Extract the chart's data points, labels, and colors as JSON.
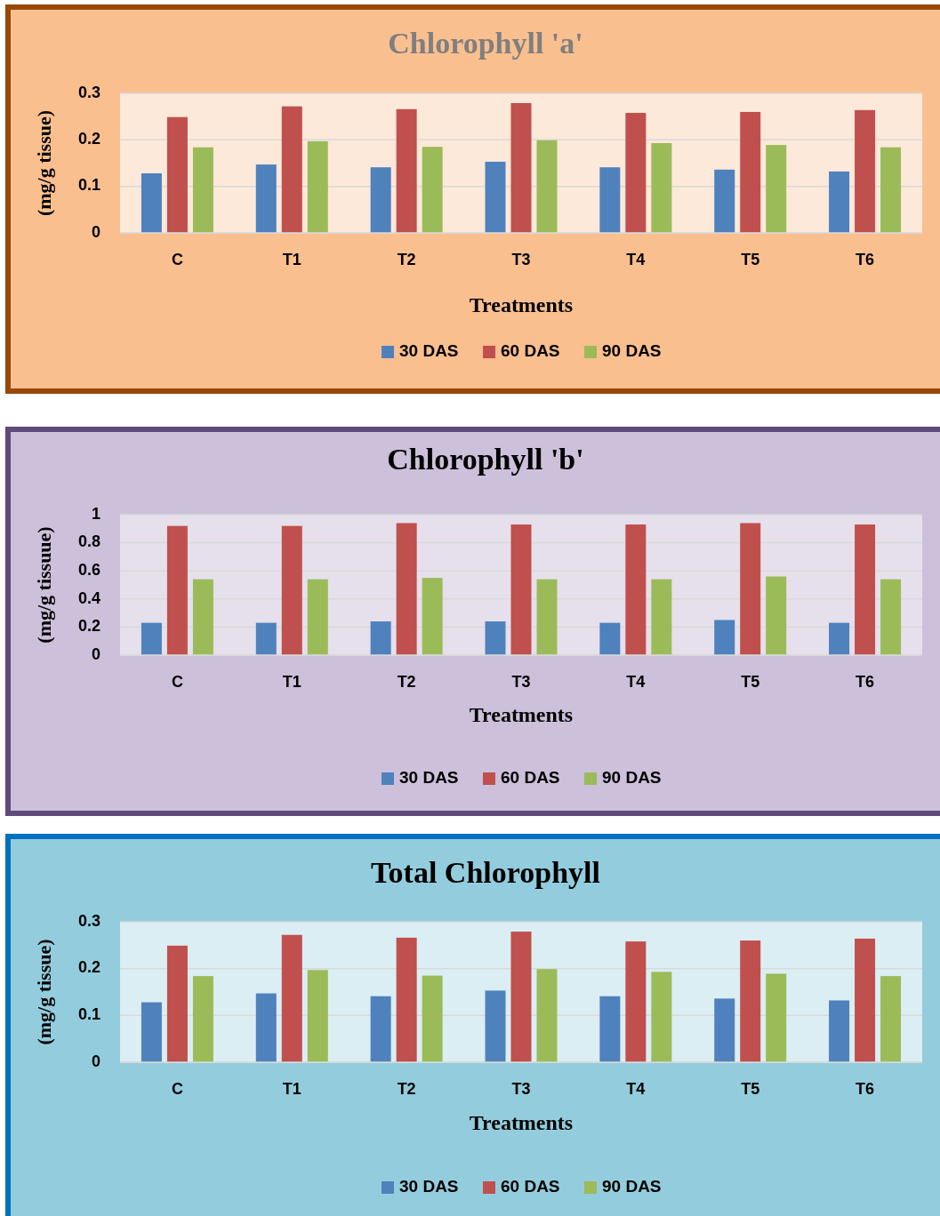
{
  "chart_data": [
    {
      "type": "bar",
      "title": "Chlorophyll 'a'",
      "xlabel": "Treatments",
      "ylabel": "(mg/g tissue)",
      "categories": [
        "C",
        "T1",
        "T2",
        "T3",
        "T4",
        "T5",
        "T6"
      ],
      "ylim": [
        0,
        0.3
      ],
      "yticks": [
        0,
        0.1,
        0.2,
        0.3
      ],
      "grid": "y",
      "legend": "bottom",
      "series": [
        {
          "name": "30 DAS",
          "color": "#4f81bd",
          "values": [
            0.128,
            0.147,
            0.141,
            0.153,
            0.141,
            0.136,
            0.132
          ]
        },
        {
          "name": "60 DAS",
          "color": "#c0504d",
          "values": [
            0.249,
            0.272,
            0.266,
            0.279,
            0.258,
            0.26,
            0.264
          ]
        },
        {
          "name": "90 DAS",
          "color": "#9bbb59",
          "values": [
            0.184,
            0.197,
            0.185,
            0.199,
            0.193,
            0.189,
            0.184
          ]
        }
      ]
    },
    {
      "type": "bar",
      "title": "Chlorophyll 'b'",
      "xlabel": "Treatments",
      "ylabel": "(mg/g tissuue)",
      "categories": [
        "C",
        "T1",
        "T2",
        "T3",
        "T4",
        "T5",
        "T6"
      ],
      "ylim": [
        0,
        1
      ],
      "yticks": [
        0,
        0.2,
        0.4,
        0.6,
        0.8,
        1
      ],
      "grid": "y",
      "legend": "bottom",
      "series": [
        {
          "name": "30 DAS",
          "color": "#4f81bd",
          "values": [
            0.23,
            0.23,
            0.24,
            0.24,
            0.23,
            0.25,
            0.23
          ]
        },
        {
          "name": "60 DAS",
          "color": "#c0504d",
          "values": [
            0.92,
            0.92,
            0.94,
            0.93,
            0.93,
            0.94,
            0.93
          ]
        },
        {
          "name": "90 DAS",
          "color": "#9bbb59",
          "values": [
            0.54,
            0.54,
            0.55,
            0.54,
            0.54,
            0.56,
            0.54
          ]
        }
      ]
    },
    {
      "type": "bar",
      "title": "Total Chlorophyll",
      "xlabel": "Treatments",
      "ylabel": "(mg/g tissue)",
      "categories": [
        "C",
        "T1",
        "T2",
        "T3",
        "T4",
        "T5",
        "T6"
      ],
      "ylim": [
        0,
        0.3
      ],
      "yticks": [
        0,
        0.1,
        0.2,
        0.3
      ],
      "grid": "y",
      "legend": "bottom",
      "series": [
        {
          "name": "30 DAS",
          "color": "#4f81bd",
          "values": [
            0.128,
            0.147,
            0.141,
            0.153,
            0.141,
            0.136,
            0.132
          ]
        },
        {
          "name": "60 DAS",
          "color": "#c0504d",
          "values": [
            0.249,
            0.272,
            0.266,
            0.279,
            0.258,
            0.26,
            0.264
          ]
        },
        {
          "name": "90 DAS",
          "color": "#9bbb59",
          "values": [
            0.184,
            0.197,
            0.185,
            0.199,
            0.193,
            0.189,
            0.184
          ]
        }
      ]
    }
  ]
}
